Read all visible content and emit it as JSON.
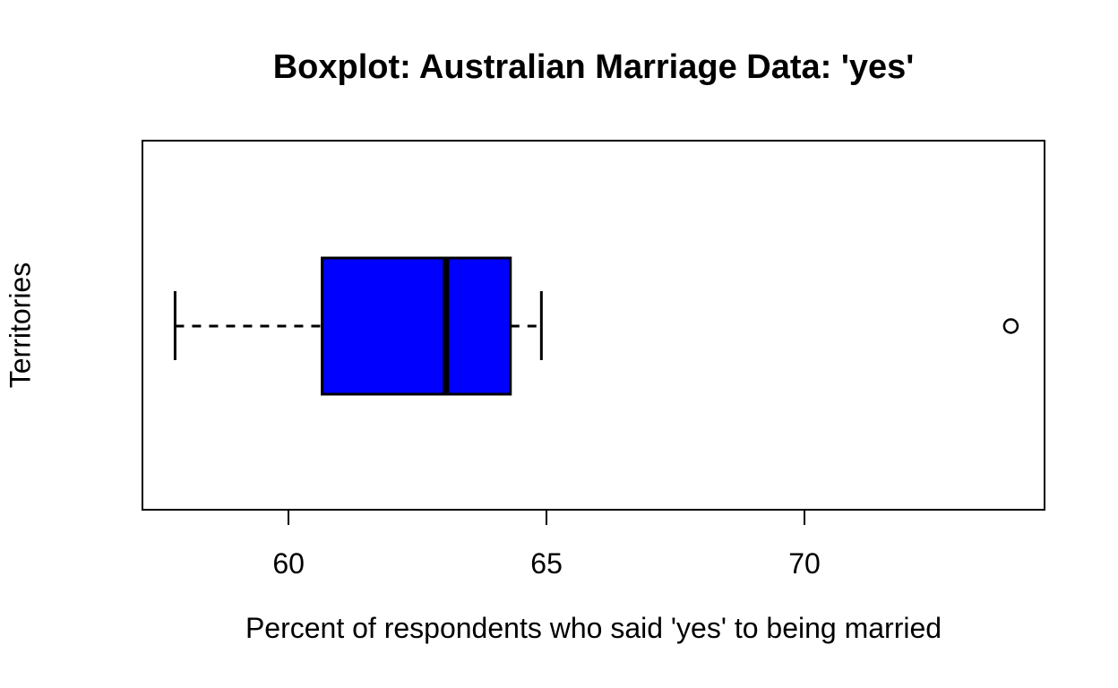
{
  "chart_data": {
    "type": "boxplot",
    "orientation": "horizontal",
    "title": "Boxplot: Australian Marriage Data: 'yes'",
    "xlabel": "Percent of respondents who said 'yes' to being married",
    "ylabel": "Territories",
    "xlim": [
      57.15,
      74.67
    ],
    "xticks": [
      {
        "value": 60,
        "label": "60"
      },
      {
        "value": 65,
        "label": "65"
      },
      {
        "value": 70,
        "label": "70"
      }
    ],
    "grid": false,
    "legend": null,
    "colors": {
      "box_fill": "#0000ff",
      "line": "#000000",
      "background": "#ffffff"
    },
    "series": [
      {
        "name": "Territories",
        "whisker_low": 57.8,
        "q1": 60.65,
        "median": 63.05,
        "q3": 64.3,
        "whisker_high": 64.9,
        "outliers": [
          74.0
        ]
      }
    ]
  }
}
